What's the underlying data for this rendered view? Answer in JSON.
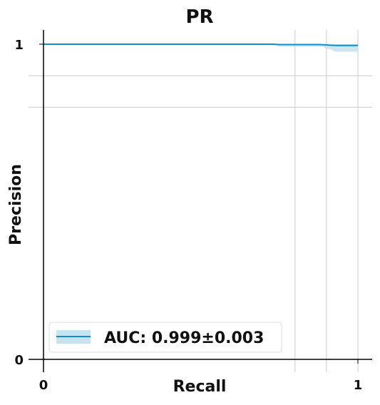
{
  "chart_data": {
    "type": "line",
    "title": "PR",
    "xlabel": "Recall",
    "ylabel": "Precision",
    "xlim": [
      0,
      1
    ],
    "ylim": [
      0,
      1
    ],
    "x_ticks": [
      {
        "value": 0,
        "label": "0"
      },
      {
        "value": 1,
        "label": "1"
      }
    ],
    "y_ticks": [
      {
        "value": 0,
        "label": "0"
      },
      {
        "value": 1,
        "label": "1"
      }
    ],
    "grid_x": [
      0.8,
      0.9,
      1.0
    ],
    "grid_y": [
      0.9,
      0.8
    ],
    "legend_position": "lower-left",
    "series": [
      {
        "name": "AUC: 0.999±0.003",
        "color": "#0f8fcf",
        "band_color": "#c6e3f2",
        "x": [
          0.0,
          0.5,
          0.7,
          0.73,
          0.75,
          0.8,
          0.85,
          0.88,
          0.89,
          0.9,
          0.91,
          0.93,
          0.95,
          1.0
        ],
        "y": [
          1.0,
          1.0,
          1.0,
          1.0,
          0.999,
          0.999,
          0.999,
          0.999,
          0.998,
          0.998,
          0.997,
          0.996,
          0.996,
          0.996
        ],
        "y_lower": [
          1.0,
          1.0,
          1.0,
          1.0,
          0.992,
          0.992,
          0.992,
          0.992,
          0.992,
          0.985,
          0.985,
          0.976,
          0.976,
          0.976
        ],
        "y_upper": [
          1.0,
          1.0,
          1.0,
          1.0,
          1.0,
          1.0,
          1.0,
          1.0,
          1.0,
          1.0,
          1.0,
          1.0,
          1.0,
          1.0
        ]
      }
    ]
  }
}
